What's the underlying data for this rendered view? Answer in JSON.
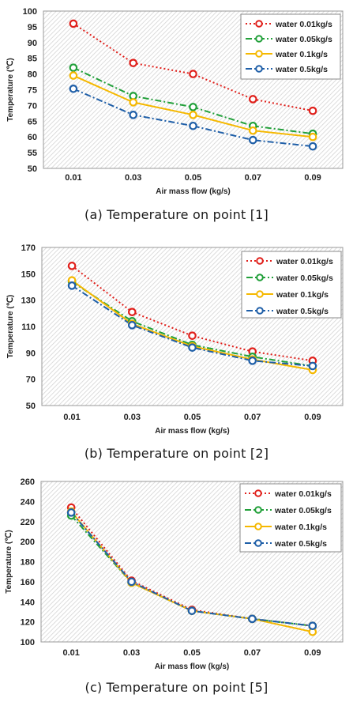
{
  "colors": {
    "water_0_01": "#e0201b",
    "water_0_05": "#22a03a",
    "water_0_1": "#f5b800",
    "water_0_5": "#1f5fa8"
  },
  "chart_data": [
    {
      "type": "line",
      "caption": "(a)  Temperature  on  point  [1]",
      "xlabel": "Air mass flow (kg/s)",
      "ylabel": "Temperature (℃)",
      "categories": [
        "0.01",
        "0.03",
        "0.05",
        "0.07",
        "0.09"
      ],
      "yticks": [
        "50",
        "55",
        "60",
        "65",
        "70",
        "75",
        "80",
        "85",
        "90",
        "95",
        "100"
      ],
      "ylim": [
        50,
        100
      ],
      "grid": "hatched",
      "legend": "top-right",
      "series": [
        {
          "name": "water 0.01kg/s",
          "values": [
            96,
            83.5,
            80,
            72,
            68.3
          ]
        },
        {
          "name": "water 0.05kg/s",
          "values": [
            82,
            73,
            69.5,
            63.5,
            61
          ]
        },
        {
          "name": "water 0.1kg/s",
          "values": [
            79.5,
            71,
            67,
            62,
            60
          ]
        },
        {
          "name": "water 0.5kg/s",
          "values": [
            75.3,
            67,
            63.5,
            59,
            57
          ]
        }
      ]
    },
    {
      "type": "line",
      "caption": "(b)  Temperature  on  point  [2]",
      "xlabel": "Air mass flow (kg/s)",
      "ylabel": "Temperature (℃)",
      "categories": [
        "0.01",
        "0.03",
        "0.05",
        "0.07",
        "0.09"
      ],
      "yticks": [
        "50",
        "70",
        "90",
        "110",
        "130",
        "150",
        "170"
      ],
      "ylim": [
        50,
        170
      ],
      "grid": "hatched",
      "legend": "top-right",
      "series": [
        {
          "name": "water 0.01kg/s",
          "values": [
            156,
            121,
            103,
            91,
            84
          ]
        },
        {
          "name": "water 0.05kg/s",
          "values": [
            144,
            114,
            96,
            87,
            80
          ]
        },
        {
          "name": "water 0.1kg/s",
          "values": [
            145,
            112,
            95,
            85,
            77
          ]
        },
        {
          "name": "water 0.5kg/s",
          "values": [
            141,
            111,
            94,
            84,
            80
          ]
        }
      ]
    },
    {
      "type": "line",
      "caption": "(c)  Temperature  on  point  [5]",
      "xlabel": "Air mass flow (kg/s)",
      "ylabel": "Temperature (℃)",
      "categories": [
        "0.01",
        "0.03",
        "0.05",
        "0.07",
        "0.09"
      ],
      "yticks": [
        "100",
        "120",
        "140",
        "160",
        "180",
        "200",
        "220",
        "240",
        "260"
      ],
      "ylim": [
        100,
        260
      ],
      "grid": "hatched",
      "legend": "top-right",
      "series": [
        {
          "name": "water 0.01kg/s",
          "values": [
            234,
            161,
            132,
            123,
            116
          ]
        },
        {
          "name": "water 0.05kg/s",
          "values": [
            226,
            159,
            131,
            123,
            116
          ]
        },
        {
          "name": "water 0.1kg/s",
          "values": [
            230,
            159,
            131,
            123,
            110
          ]
        },
        {
          "name": "water 0.5kg/s",
          "values": [
            229,
            160,
            131,
            123,
            116
          ]
        }
      ]
    }
  ]
}
